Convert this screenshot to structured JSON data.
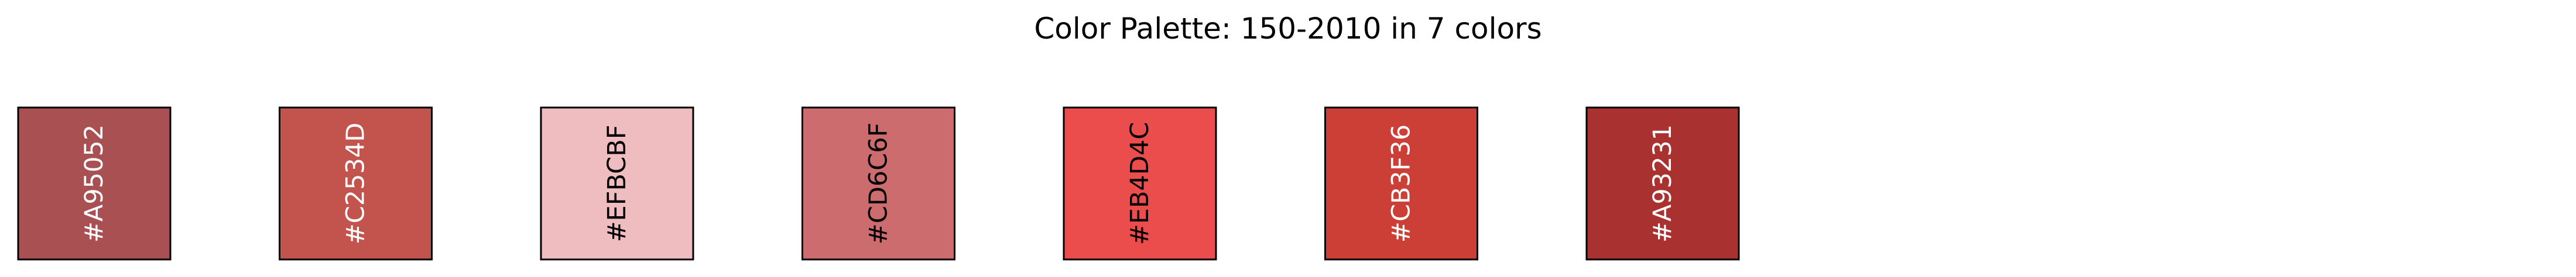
{
  "chart_data": {
    "type": "palette",
    "title": "Color Palette: 150-2010 in 7 colors",
    "swatches": [
      {
        "hex": "#A95052",
        "label": "#A95052",
        "text_color": "#ffffff"
      },
      {
        "hex": "#C2534D",
        "label": "#C2534D",
        "text_color": "#ffffff"
      },
      {
        "hex": "#EFBCBF",
        "label": "#EFBCBF",
        "text_color": "#000000"
      },
      {
        "hex": "#CD6C6F",
        "label": "#CD6C6F",
        "text_color": "#000000"
      },
      {
        "hex": "#EB4D4C",
        "label": "#EB4D4C",
        "text_color": "#000000"
      },
      {
        "hex": "#CB3F36",
        "label": "#CB3F36",
        "text_color": "#ffffff"
      },
      {
        "hex": "#A93231",
        "label": "#A93231",
        "text_color": "#ffffff"
      }
    ]
  }
}
